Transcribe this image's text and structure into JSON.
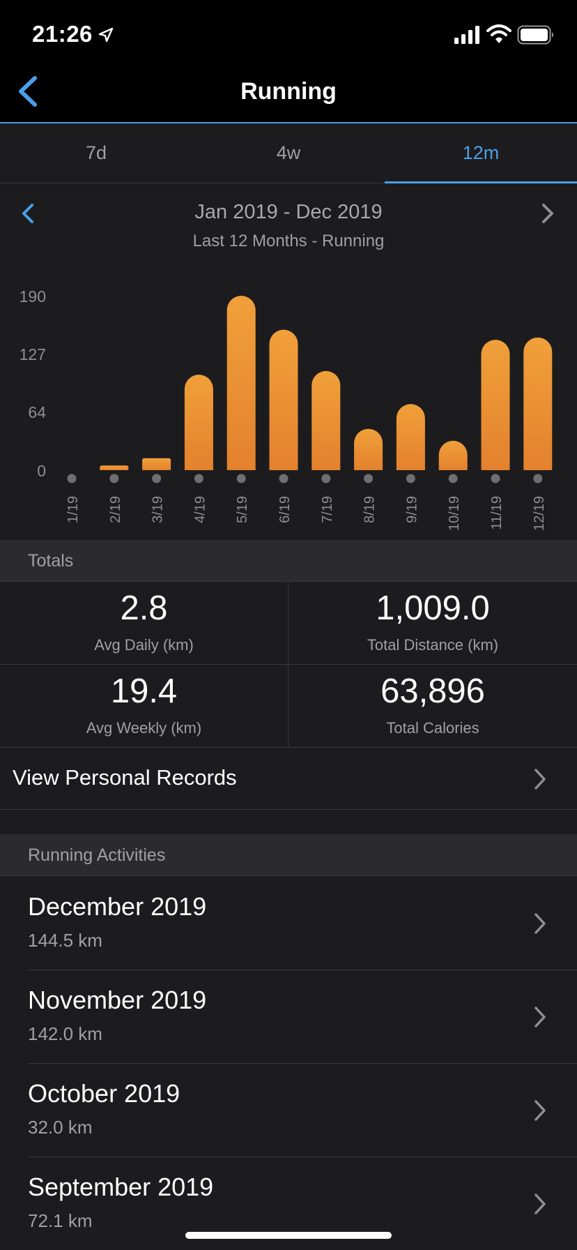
{
  "status_bar": {
    "time": "21:26"
  },
  "nav": {
    "title": "Running"
  },
  "tabs": [
    {
      "label": "7d",
      "active": false
    },
    {
      "label": "4w",
      "active": false
    },
    {
      "label": "12m",
      "active": true
    }
  ],
  "range": {
    "title": "Jan 2019 - Dec 2019",
    "subtitle": "Last 12 Months - Running"
  },
  "chart_data": {
    "type": "bar",
    "categories": [
      "1/19",
      "2/19",
      "3/19",
      "4/19",
      "5/19",
      "6/19",
      "7/19",
      "8/19",
      "9/19",
      "10/19",
      "11/19",
      "12/19"
    ],
    "values": [
      0,
      5,
      13,
      104,
      190,
      153,
      108,
      45,
      72,
      32,
      142,
      144.5
    ],
    "y_ticks": [
      "190",
      "127",
      "64",
      "0"
    ],
    "y_tick_values": [
      190,
      127,
      64,
      0
    ],
    "ylim": [
      0,
      190
    ],
    "bar_color": "#f0a03a",
    "grid": false
  },
  "totals": {
    "header": "Totals",
    "cells": [
      {
        "value": "2.8",
        "label": "Avg Daily (km)"
      },
      {
        "value": "1,009.0",
        "label": "Total Distance (km)"
      },
      {
        "value": "19.4",
        "label": "Avg Weekly (km)"
      },
      {
        "value": "63,896",
        "label": "Total Calories"
      }
    ]
  },
  "records": {
    "label": "View Personal Records"
  },
  "activities": {
    "header": "Running Activities",
    "items": [
      {
        "title": "December 2019",
        "distance": "144.5 km"
      },
      {
        "title": "November 2019",
        "distance": "142.0 km"
      },
      {
        "title": "October 2019",
        "distance": "32.0 km"
      },
      {
        "title": "September 2019",
        "distance": "72.1 km"
      }
    ]
  },
  "colors": {
    "accent": "#4a9fe8",
    "bar": "#f0a03a",
    "background": "#1c1c1e"
  },
  "icons": [
    "location-arrow-icon",
    "signal-icon",
    "wifi-icon",
    "battery-icon",
    "back-chevron-icon",
    "chevron-left-icon",
    "chevron-right-icon"
  ]
}
